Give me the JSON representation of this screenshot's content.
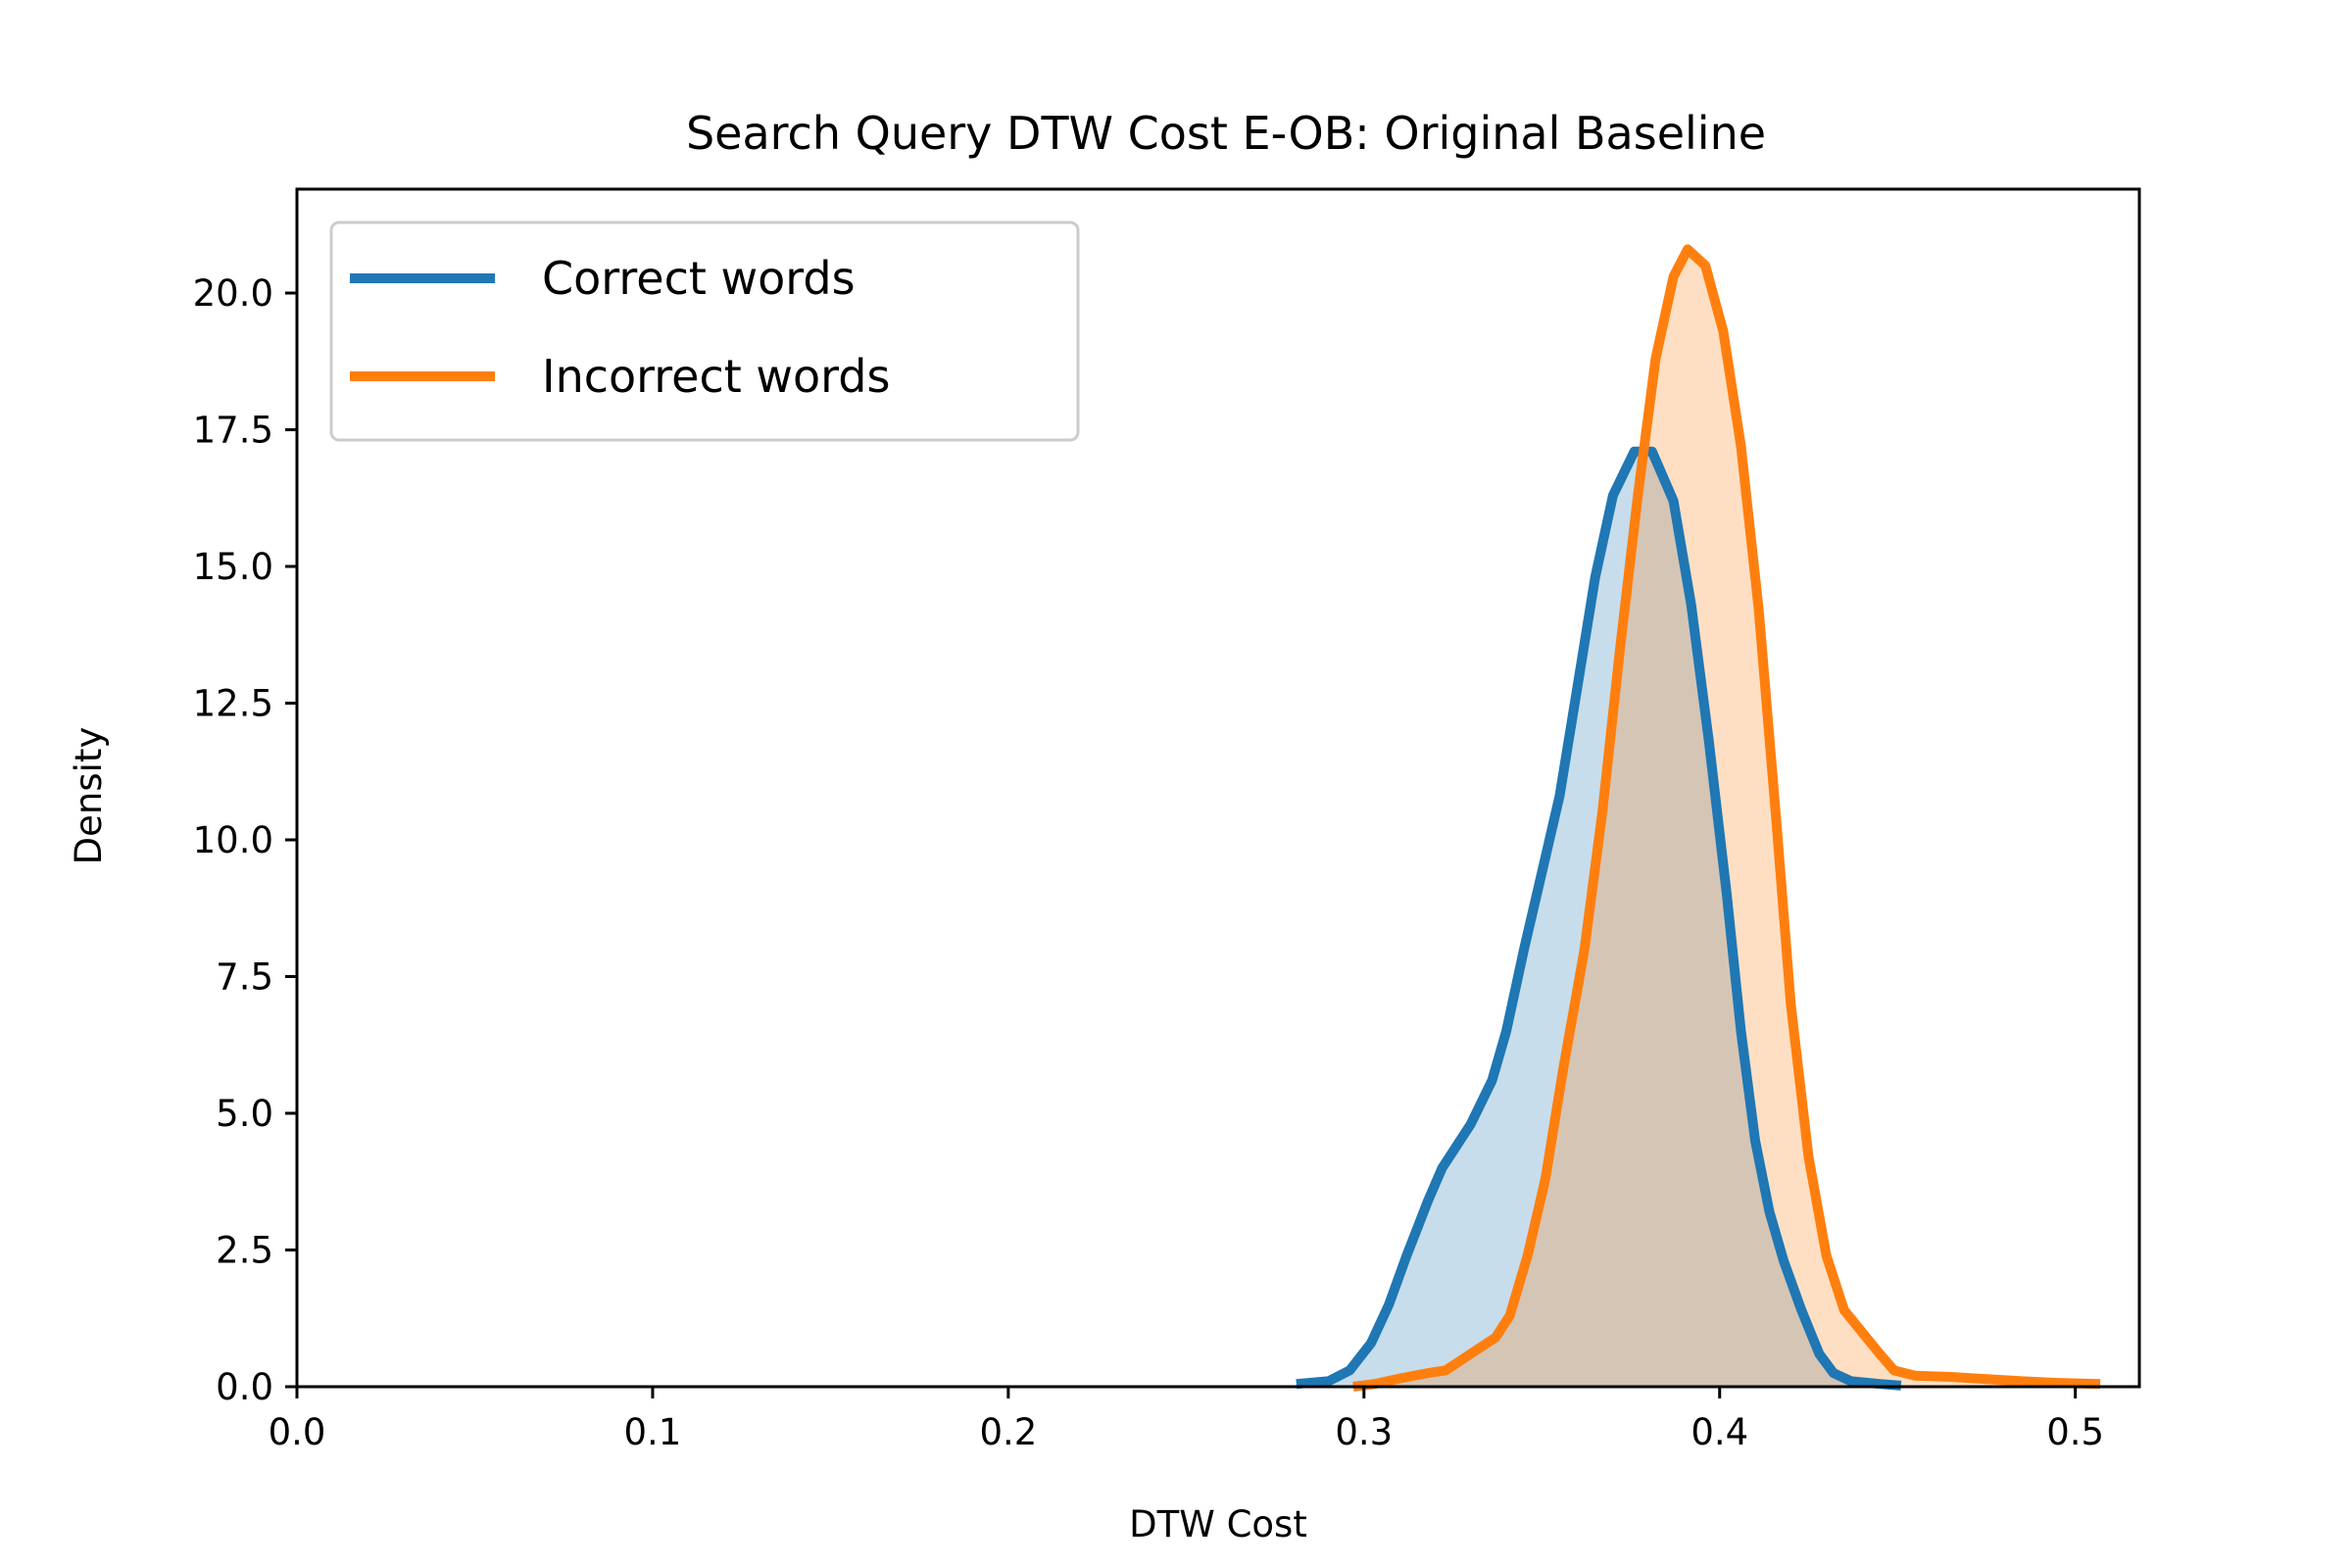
{
  "chart_data": {
    "type": "area",
    "title": "Search Query DTW Cost E-OB: Original Baseline",
    "xlabel": "DTW Cost",
    "ylabel": "Density",
    "xlim": [
      0.0,
      0.518
    ],
    "ylim": [
      0.0,
      21.9
    ],
    "xticks": [
      {
        "value": 0.0,
        "label": "0.0"
      },
      {
        "value": 0.1,
        "label": "0.1"
      },
      {
        "value": 0.2,
        "label": "0.2"
      },
      {
        "value": 0.3,
        "label": "0.3"
      },
      {
        "value": 0.4,
        "label": "0.4"
      },
      {
        "value": 0.5,
        "label": "0.5"
      }
    ],
    "yticks": [
      {
        "value": 0.0,
        "label": "0.0"
      },
      {
        "value": 2.5,
        "label": "2.5"
      },
      {
        "value": 5.0,
        "label": "5.0"
      },
      {
        "value": 7.5,
        "label": "7.5"
      },
      {
        "value": 10.0,
        "label": "10.0"
      },
      {
        "value": 12.5,
        "label": "12.5"
      },
      {
        "value": 15.0,
        "label": "15.0"
      },
      {
        "value": 17.5,
        "label": "17.5"
      },
      {
        "value": 20.0,
        "label": "20.0"
      }
    ],
    "grid": false,
    "legend": {
      "position": "top-left"
    },
    "series": [
      {
        "name": "Correct words",
        "color": "#1f77b4",
        "fill_color": "#c6dbed",
        "points": [
          [
            0.281,
            0.05
          ],
          [
            0.29,
            0.1
          ],
          [
            0.296,
            0.3
          ],
          [
            0.302,
            0.8
          ],
          [
            0.307,
            1.5
          ],
          [
            0.312,
            2.4
          ],
          [
            0.318,
            3.4
          ],
          [
            0.322,
            4.0
          ],
          [
            0.33,
            4.8
          ],
          [
            0.336,
            5.6
          ],
          [
            0.34,
            6.5
          ],
          [
            0.345,
            8.0
          ],
          [
            0.35,
            9.4
          ],
          [
            0.355,
            10.8
          ],
          [
            0.36,
            12.8
          ],
          [
            0.365,
            14.8
          ],
          [
            0.37,
            16.3
          ],
          [
            0.376,
            17.1
          ],
          [
            0.381,
            17.1
          ],
          [
            0.387,
            16.2
          ],
          [
            0.392,
            14.3
          ],
          [
            0.397,
            11.8
          ],
          [
            0.402,
            9.0
          ],
          [
            0.406,
            6.5
          ],
          [
            0.41,
            4.5
          ],
          [
            0.414,
            3.2
          ],
          [
            0.418,
            2.3
          ],
          [
            0.423,
            1.4
          ],
          [
            0.428,
            0.6
          ],
          [
            0.432,
            0.25
          ],
          [
            0.437,
            0.1
          ],
          [
            0.445,
            0.05
          ],
          [
            0.451,
            0.02
          ]
        ]
      },
      {
        "name": "Incorrect words",
        "color": "#ff7f0e",
        "fill_color": "#fddcc3",
        "points": [
          [
            0.297,
            0.0
          ],
          [
            0.303,
            0.05
          ],
          [
            0.31,
            0.15
          ],
          [
            0.318,
            0.25
          ],
          [
            0.323,
            0.3
          ],
          [
            0.33,
            0.6
          ],
          [
            0.337,
            0.9
          ],
          [
            0.341,
            1.3
          ],
          [
            0.346,
            2.4
          ],
          [
            0.351,
            3.8
          ],
          [
            0.356,
            5.8
          ],
          [
            0.362,
            8.0
          ],
          [
            0.367,
            10.5
          ],
          [
            0.372,
            13.5
          ],
          [
            0.377,
            16.3
          ],
          [
            0.382,
            18.8
          ],
          [
            0.387,
            20.3
          ],
          [
            0.391,
            20.8
          ],
          [
            0.396,
            20.5
          ],
          [
            0.401,
            19.3
          ],
          [
            0.406,
            17.2
          ],
          [
            0.411,
            14.2
          ],
          [
            0.416,
            10.3
          ],
          [
            0.42,
            7.0
          ],
          [
            0.425,
            4.2
          ],
          [
            0.43,
            2.4
          ],
          [
            0.435,
            1.4
          ],
          [
            0.44,
            1.0
          ],
          [
            0.445,
            0.6
          ],
          [
            0.449,
            0.3
          ],
          [
            0.455,
            0.2
          ],
          [
            0.465,
            0.18
          ],
          [
            0.475,
            0.14
          ],
          [
            0.485,
            0.1
          ],
          [
            0.495,
            0.07
          ],
          [
            0.507,
            0.05
          ]
        ]
      }
    ]
  }
}
